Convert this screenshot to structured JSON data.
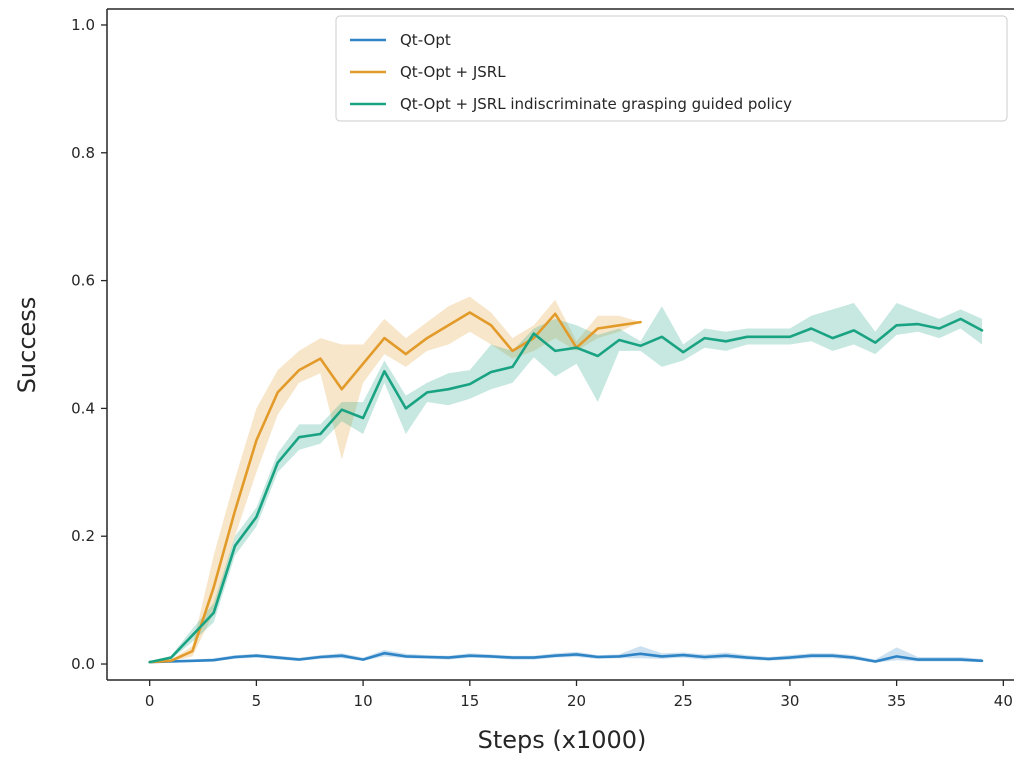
{
  "chart_data": {
    "type": "line",
    "title": "",
    "xlabel": "Steps (x1000)",
    "ylabel": "Success",
    "xlim": [
      -2,
      40.5
    ],
    "ylim": [
      -0.025,
      1.025
    ],
    "xticks": [
      0,
      5,
      10,
      15,
      20,
      25,
      30,
      35,
      40
    ],
    "xtick_labels": [
      "0",
      "5",
      "10",
      "15",
      "20",
      "25",
      "30",
      "35",
      "40"
    ],
    "yticks": [
      0.0,
      0.2,
      0.4,
      0.6,
      0.8,
      1.0
    ],
    "ytick_labels": [
      "0.0",
      "0.2",
      "0.4",
      "0.6",
      "0.8",
      "1.0"
    ],
    "grid": false,
    "legend_position": "top-right",
    "series": [
      {
        "name": "Qt-Opt",
        "color": "#2f84c5",
        "x": [
          0,
          1,
          2,
          3,
          4,
          5,
          6,
          7,
          8,
          9,
          10,
          11,
          12,
          13,
          14,
          15,
          16,
          17,
          18,
          19,
          20,
          21,
          22,
          23,
          24,
          25,
          26,
          27,
          28,
          29,
          30,
          31,
          32,
          33,
          34,
          35,
          36,
          37,
          38,
          39
        ],
        "y": [
          0.003,
          0.004,
          0.005,
          0.006,
          0.011,
          0.013,
          0.01,
          0.007,
          0.011,
          0.013,
          0.007,
          0.017,
          0.012,
          0.011,
          0.01,
          0.013,
          0.012,
          0.01,
          0.01,
          0.013,
          0.015,
          0.011,
          0.012,
          0.016,
          0.012,
          0.014,
          0.011,
          0.013,
          0.01,
          0.008,
          0.01,
          0.013,
          0.013,
          0.01,
          0.004,
          0.012,
          0.007,
          0.007,
          0.007,
          0.005
        ],
        "lower": [
          0.002,
          0.002,
          0.003,
          0.004,
          0.008,
          0.01,
          0.007,
          0.005,
          0.008,
          0.009,
          0.005,
          0.012,
          0.009,
          0.008,
          0.007,
          0.01,
          0.009,
          0.007,
          0.007,
          0.01,
          0.011,
          0.008,
          0.009,
          0.009,
          0.008,
          0.01,
          0.007,
          0.009,
          0.007,
          0.005,
          0.007,
          0.009,
          0.009,
          0.007,
          0.002,
          0.006,
          0.004,
          0.004,
          0.004,
          0.003
        ],
        "upper": [
          0.005,
          0.006,
          0.007,
          0.009,
          0.014,
          0.016,
          0.013,
          0.01,
          0.014,
          0.017,
          0.01,
          0.022,
          0.016,
          0.014,
          0.013,
          0.017,
          0.015,
          0.013,
          0.013,
          0.017,
          0.019,
          0.014,
          0.015,
          0.028,
          0.017,
          0.018,
          0.015,
          0.018,
          0.014,
          0.011,
          0.014,
          0.017,
          0.017,
          0.014,
          0.007,
          0.026,
          0.011,
          0.011,
          0.011,
          0.008
        ]
      },
      {
        "name": "Qt-Opt + JSRL",
        "color": "#e29b2a",
        "x": [
          0,
          1,
          2,
          3,
          4,
          5,
          6,
          7,
          8,
          9,
          10,
          11,
          12,
          13,
          14,
          15,
          16,
          17,
          18,
          19,
          20,
          21,
          22,
          23
        ],
        "y": [
          0.003,
          0.005,
          0.02,
          0.12,
          0.24,
          0.35,
          0.425,
          0.46,
          0.478,
          0.43,
          0.47,
          0.51,
          0.485,
          0.51,
          0.53,
          0.55,
          0.53,
          0.49,
          0.51,
          0.548,
          0.495,
          0.525,
          0.53,
          0.535
        ],
        "lower": [
          0.002,
          0.003,
          0.012,
          0.08,
          0.2,
          0.3,
          0.39,
          0.44,
          0.455,
          0.32,
          0.44,
          0.485,
          0.465,
          0.49,
          0.5,
          0.52,
          0.5,
          0.478,
          0.49,
          0.51,
          0.49,
          0.51,
          0.52,
          0.535
        ],
        "upper": [
          0.004,
          0.007,
          0.028,
          0.17,
          0.29,
          0.4,
          0.46,
          0.49,
          0.51,
          0.5,
          0.5,
          0.54,
          0.51,
          0.535,
          0.56,
          0.575,
          0.55,
          0.51,
          0.53,
          0.57,
          0.505,
          0.545,
          0.545,
          0.535
        ]
      },
      {
        "name": "Qt-Opt + JSRL indiscriminate grasping guided policy",
        "color": "#1aa383",
        "x": [
          0,
          1,
          2,
          3,
          4,
          5,
          6,
          7,
          8,
          9,
          10,
          11,
          12,
          13,
          14,
          15,
          16,
          17,
          18,
          19,
          20,
          21,
          22,
          23,
          24,
          25,
          26,
          27,
          28,
          29,
          30,
          31,
          32,
          33,
          34,
          35,
          36,
          37,
          38,
          39
        ],
        "y": [
          0.003,
          0.01,
          0.045,
          0.08,
          0.185,
          0.23,
          0.315,
          0.355,
          0.36,
          0.398,
          0.385,
          0.458,
          0.4,
          0.425,
          0.43,
          0.438,
          0.457,
          0.465,
          0.517,
          0.49,
          0.495,
          0.482,
          0.507,
          0.498,
          0.512,
          0.488,
          0.51,
          0.505,
          0.512,
          0.512,
          0.512,
          0.525,
          0.51,
          0.522,
          0.503,
          0.53,
          0.532,
          0.525,
          0.54,
          0.522
        ],
        "lower": [
          0.002,
          0.007,
          0.035,
          0.065,
          0.17,
          0.215,
          0.3,
          0.335,
          0.345,
          0.38,
          0.36,
          0.44,
          0.36,
          0.41,
          0.405,
          0.415,
          0.43,
          0.44,
          0.48,
          0.45,
          0.47,
          0.41,
          0.49,
          0.49,
          0.465,
          0.475,
          0.495,
          0.49,
          0.5,
          0.5,
          0.5,
          0.505,
          0.49,
          0.5,
          0.485,
          0.515,
          0.52,
          0.51,
          0.525,
          0.5
        ],
        "upper": [
          0.004,
          0.013,
          0.055,
          0.095,
          0.2,
          0.245,
          0.33,
          0.375,
          0.375,
          0.41,
          0.41,
          0.475,
          0.42,
          0.44,
          0.455,
          0.46,
          0.5,
          0.49,
          0.525,
          0.54,
          0.53,
          0.515,
          0.525,
          0.505,
          0.56,
          0.5,
          0.525,
          0.52,
          0.525,
          0.525,
          0.525,
          0.545,
          0.555,
          0.565,
          0.52,
          0.565,
          0.552,
          0.54,
          0.555,
          0.54
        ]
      }
    ]
  }
}
